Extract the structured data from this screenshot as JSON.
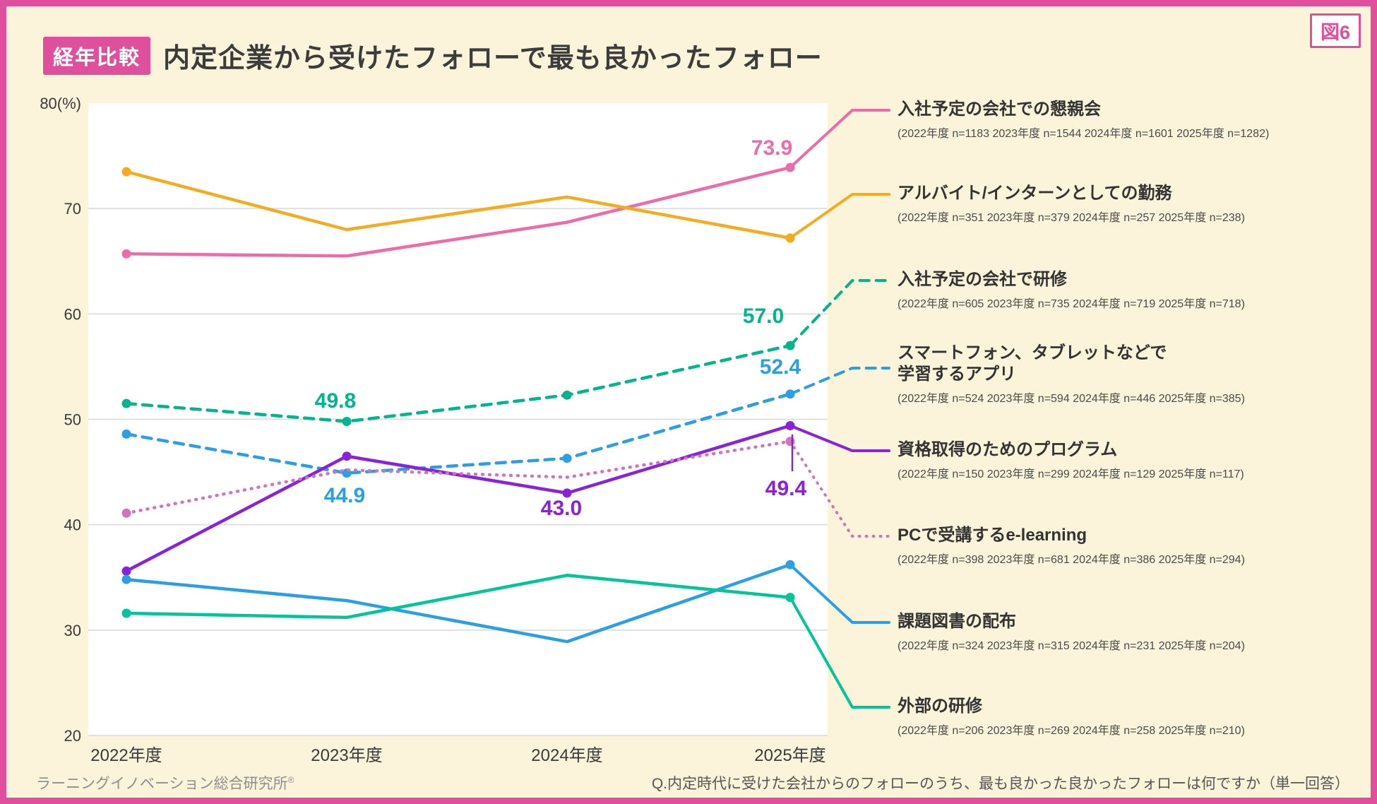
{
  "figure_label": "図6",
  "header": {
    "badge": "経年比較",
    "title": "内定企業から受けたフォローで最も良かったフォロー"
  },
  "footer": {
    "source": "ラーニングイノベーション総合研究所",
    "registered_mark": "®",
    "question": "Q.内定時代に受けた会社からのフォローのうち、最も良かった良かったフォローは何ですか（単一回答）"
  },
  "colors": {
    "frame_pink": "#df4f9c",
    "background_cream": "#fbf4da",
    "plot_background": "#ffffff",
    "gridline": "#e0e0e0",
    "axis_text": "#3a3a3a"
  },
  "chart_data": {
    "type": "line",
    "categories": [
      "2022年度",
      "2023年度",
      "2024年度",
      "2025年度"
    ],
    "ylim": [
      20,
      80
    ],
    "yticks": [
      20,
      30,
      40,
      50,
      60,
      70,
      80
    ],
    "y_top_tick_label": "80(%)",
    "grid": "horizontal",
    "legend_position": "right",
    "series": [
      {
        "name": "入社予定の会社での懇親会",
        "sample_sizes": "(2022年度 n=1183  2023年度 n=1544  2024年度 n=1601  2025年度 n=1282)",
        "color": "#ec6ba8",
        "style": "solid",
        "values": [
          65.7,
          65.5,
          68.7,
          73.9
        ]
      },
      {
        "name": "アルバイト/インターンとしての勤務",
        "sample_sizes": "(2022年度 n=351  2023年度 n=379  2024年度 n=257  2025年度 n=238)",
        "color": "#f6ab1e",
        "style": "solid",
        "values": [
          73.5,
          68.0,
          71.1,
          67.2
        ]
      },
      {
        "name": "入社予定の会社で研修",
        "sample_sizes": "(2022年度 n=605  2023年度 n=735  2024年度 n=719  2025年度 n=718)",
        "color": "#00b48d",
        "style": "dashed",
        "values": [
          51.5,
          49.8,
          52.3,
          57.0
        ]
      },
      {
        "name": "スマートフォン、タブレットなどで\n学習するアプリ",
        "sample_sizes": "(2022年度 n=524  2023年度 n=594  2024年度 n=446  2025年度 n=385)",
        "color": "#2a9fe5",
        "style": "dashed",
        "values": [
          48.6,
          44.9,
          46.3,
          52.4
        ]
      },
      {
        "name": "資格取得のためのプログラム",
        "sample_sizes": "(2022年度 n=150  2023年度 n=299  2024年度 n=129  2025年度 n=117)",
        "color": "#8a22d8",
        "style": "solid",
        "values": [
          35.6,
          46.5,
          43.0,
          49.4
        ]
      },
      {
        "name": "PCで受講するe-learning",
        "sample_sizes": "(2022年度 n=398  2023年度 n=681  2024年度 n=386  2025年度 n=294)",
        "color": "#d173bd",
        "style": "dotted",
        "values": [
          41.1,
          45.2,
          44.5,
          47.9
        ]
      },
      {
        "name": "課題図書の配布",
        "sample_sizes": "(2022年度 n=324  2023年度 n=315  2024年度 n=231  2025年度 n=204)",
        "color": "#2a9fe5",
        "style": "solid",
        "values": [
          34.8,
          32.8,
          28.9,
          36.2
        ]
      },
      {
        "name": "外部の研修",
        "sample_sizes": "(2022年度 n=206  2023年度 n=269  2024年度 n=258  2025年度 n=210)",
        "color": "#00c49a",
        "style": "solid",
        "values": [
          31.6,
          31.2,
          35.2,
          33.1
        ]
      }
    ],
    "point_labels": [
      {
        "series": 0,
        "index": 3,
        "text": "73.9"
      },
      {
        "series": 2,
        "index": 1,
        "text": "49.8"
      },
      {
        "series": 2,
        "index": 3,
        "text": "57.0"
      },
      {
        "series": 3,
        "index": 1,
        "text": "44.9"
      },
      {
        "series": 3,
        "index": 3,
        "text": "52.4"
      },
      {
        "series": 4,
        "index": 2,
        "text": "43.0"
      },
      {
        "series": 4,
        "index": 3,
        "text": "49.4"
      }
    ]
  }
}
